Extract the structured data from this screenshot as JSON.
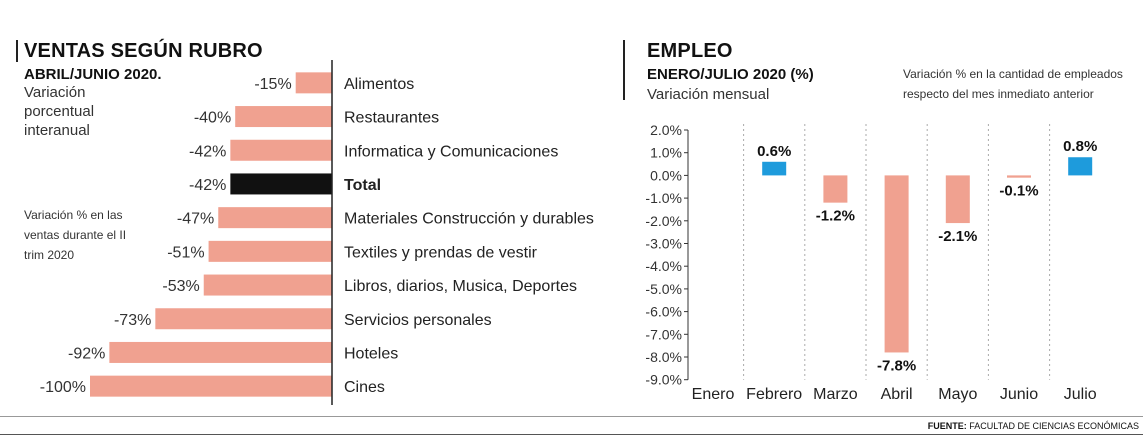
{
  "left": {
    "title": "VENTAS SEGÚN RUBRO",
    "subtitle": "ABRIL/JUNIO 2020.",
    "description": "Variación porcentual interanual",
    "note": "Variación % en las ventas durante el II trim 2020"
  },
  "right": {
    "title": "EMPLEO",
    "subtitle": "ENERO/JULIO 2020 (%)",
    "description": "Variación mensual",
    "note": "Variación % en la cantidad de empleados respecto del mes inmediato anterior"
  },
  "footer": {
    "source_label": "FUENTE:",
    "source_text": "FACULTAD DE CIENCIAS ECONÓMICAS"
  },
  "colors": {
    "salmon": "#F0A190",
    "highlight": "#111111",
    "blue": "#1E9BDC",
    "axis": "#333333",
    "grid": "#aaaaaa"
  },
  "chart_data": [
    {
      "type": "bar",
      "orientation": "horizontal",
      "title": "VENTAS SEGÚN RUBRO",
      "categories": [
        "Alimentos",
        "Restaurantes",
        "Informatica y Comunicaciones",
        "Total",
        "Materiales Construcción y durables",
        "Textiles y prendas de vestir",
        "Libros, diarios, Musica, Deportes",
        "Servicios personales",
        "Hoteles",
        "Cines"
      ],
      "values": [
        -15,
        -40,
        -42,
        -42,
        -47,
        -51,
        -53,
        -73,
        -92,
        -100
      ],
      "labels": [
        "-15%",
        "-40%",
        "-42%",
        "-42%",
        "-47%",
        "-51%",
        "-53%",
        "-73%",
        "-92%",
        "-100%"
      ],
      "highlight": "Total",
      "xlim": [
        -100,
        0
      ]
    },
    {
      "type": "bar",
      "title": "EMPLEO",
      "categories": [
        "Enero",
        "Febrero",
        "Marzo",
        "Abril",
        "Mayo",
        "Junio",
        "Julio"
      ],
      "values": [
        0,
        0.6,
        -1.2,
        -7.8,
        -2.1,
        -0.1,
        0.8
      ],
      "labels": [
        "",
        "0.6%",
        "-1.2%",
        "-7.8%",
        "-2.1%",
        "-0.1%",
        "0.8%"
      ],
      "yticks": [
        "2.0%",
        "1.0%",
        "0.0%",
        "-1.0%",
        "-2.0%",
        "-3.0%",
        "-4.0%",
        "-5.0%",
        "-6.0%",
        "-7.0%",
        "-8.0%",
        "-9.0%"
      ],
      "ylim": [
        -9,
        2
      ],
      "grid": "vertical dotted"
    }
  ]
}
